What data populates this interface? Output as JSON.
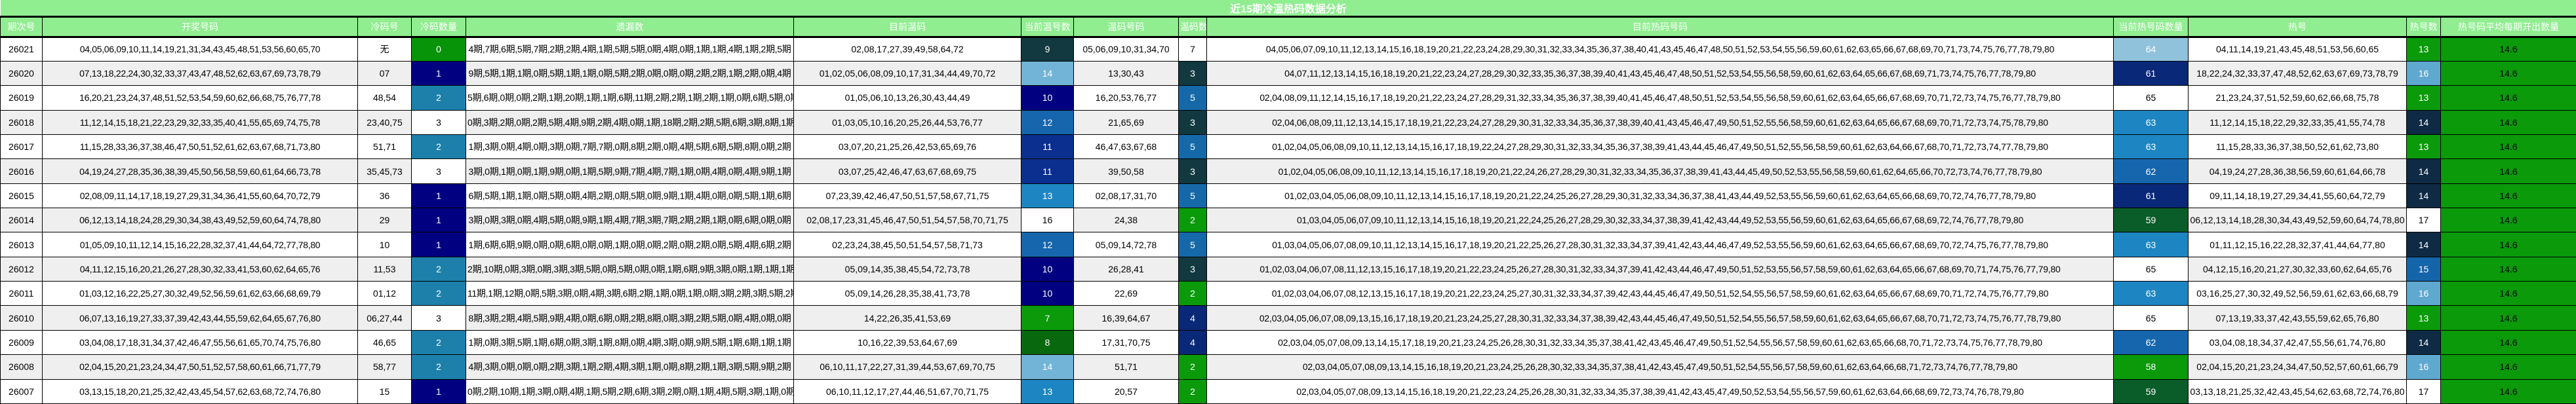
{
  "title": "近15期冷温热码数据分析",
  "columns": [
    {
      "label": "期次号"
    },
    {
      "label": "开奖号码"
    },
    {
      "label": "冷码号"
    },
    {
      "label": "冷码数量"
    },
    {
      "label": "遗漏数"
    },
    {
      "label": "目前温码"
    },
    {
      "label": "当前温号数"
    },
    {
      "label": "温码号码"
    },
    {
      "label": "温码数"
    },
    {
      "label": "目前热码号码"
    },
    {
      "label": "当前热号码数量"
    },
    {
      "label": "热号"
    },
    {
      "label": "热号数"
    },
    {
      "label": "热号码平均每期开出数量"
    }
  ],
  "colors": {
    "header_bg": "#90ee90",
    "header_fg": "#ffffff",
    "row_even_bg": "#ffffff",
    "row_odd_bg": "#efefef",
    "border": "#000000",
    "avg_bg": "#0a9a0a"
  },
  "rows": [
    {
      "period": "26021",
      "draw": "04,05,06,09,10,11,14,19,21,31,34,43,45,48,51,53,56,60,65,70",
      "cold": "无",
      "cold_n": {
        "v": "0",
        "bg": "#089408",
        "fg": "#ffffff"
      },
      "miss": "4期,7期,6期,5期,7期,2期,2期,4期,1期,5期,5期,0期,4期,0期,1期,1期,4期,1期,2期,5期",
      "warm_cur": "02,08,17,27,39,49,58,64,72",
      "warm_cur_n": {
        "v": "9",
        "bg": "#11393f",
        "fg": "#ffffff"
      },
      "warm_nums": "05,06,09,10,31,34,70",
      "warm_n": {
        "v": "7",
        "bg": "#ffffff",
        "fg": "#000000"
      },
      "hot_list": "04,05,06,07,09,10,11,12,13,14,15,16,18,19,20,21,22,23,24,28,29,30,31,32,33,34,35,36,37,38,40,41,43,45,46,47,48,50,51,52,53,54,55,56,59,60,61,62,63,65,66,67,68,69,70,71,73,74,75,76,77,78,79,80",
      "hot_cnt": {
        "v": "64",
        "bg": "#90c2dc",
        "fg": "#ffffff"
      },
      "hot_nums": "04,11,14,19,21,43,45,48,51,53,56,60,65",
      "hot_n": {
        "v": "13",
        "bg": "#0a9a0a",
        "fg": "#ffffff"
      },
      "avg": {
        "v": "14.6",
        "bg": "#0a9a0a",
        "fg": "#000000"
      }
    },
    {
      "period": "26020",
      "draw": "07,13,18,22,24,30,32,33,37,43,47,48,52,62,63,67,69,73,78,79",
      "cold": "07",
      "cold_n": {
        "v": "1",
        "bg": "#000080",
        "fg": "#ffffff"
      },
      "miss": "9期,5期,1期,1期,0期,5期,1期,1期,0期,5期,2期,0期,0期,0期,2期,2期,1期,2期,0期,4期",
      "warm_cur": "01,02,05,06,08,09,10,17,31,34,44,49,70,72",
      "warm_cur_n": {
        "v": "14",
        "bg": "#72b4d8",
        "fg": "#ffffff"
      },
      "warm_nums": "13,30,43",
      "warm_n": {
        "v": "3",
        "bg": "#11393f",
        "fg": "#ffffff"
      },
      "hot_list": "04,07,11,12,13,14,15,16,18,19,20,21,22,23,24,27,28,29,30,32,33,35,36,37,38,39,40,41,43,45,46,47,48,50,51,52,53,54,55,56,58,59,60,61,62,63,64,65,66,67,68,69,71,73,74,75,76,77,78,79,80",
      "hot_cnt": {
        "v": "61",
        "bg": "#0a2878",
        "fg": "#ffffff"
      },
      "hot_nums": "18,22,24,32,33,37,47,48,52,62,63,67,69,73,78,79",
      "hot_n": {
        "v": "16",
        "bg": "#5fa8d0",
        "fg": "#ffffff"
      },
      "avg": {
        "v": "14.6",
        "bg": "#0a9a0a",
        "fg": "#000000"
      }
    },
    {
      "period": "26019",
      "draw": "16,20,21,23,24,37,48,51,52,53,54,59,60,62,66,68,75,76,77,78",
      "cold": "48,54",
      "cold_n": {
        "v": "2",
        "bg": "#1d80aa",
        "fg": "#ffffff"
      },
      "miss": "5期,6期,0期,0期,2期,1期,20期,1期,1期,6期,11期,2期,2期,1期,2期,1期,0期,6期,5期,0期",
      "warm_cur": "01,05,06,10,13,26,30,43,44,49",
      "warm_cur_n": {
        "v": "10",
        "bg": "#000080",
        "fg": "#ffffff"
      },
      "warm_nums": "16,20,53,76,77",
      "warm_n": {
        "v": "5",
        "bg": "#1569a8",
        "fg": "#ffffff"
      },
      "hot_list": "02,04,08,09,11,12,14,15,16,17,18,19,20,21,22,23,24,27,28,29,31,32,33,34,35,36,37,38,39,40,41,45,46,47,48,50,51,52,53,54,55,56,58,59,60,61,62,63,64,65,66,67,68,69,70,71,72,73,74,75,76,77,78,79,80",
      "hot_cnt": {
        "v": "65",
        "bg": "#ffffff",
        "fg": "#000000"
      },
      "hot_nums": "21,23,24,37,51,52,59,60,62,66,68,75,78",
      "hot_n": {
        "v": "13",
        "bg": "#0a9a0a",
        "fg": "#ffffff"
      },
      "avg": {
        "v": "14.6",
        "bg": "#0a9a0a",
        "fg": "#000000"
      }
    },
    {
      "period": "26018",
      "draw": "11,12,14,15,18,21,22,23,29,32,33,35,40,41,55,65,69,74,75,78",
      "cold": "23,40,75",
      "cold_n": {
        "v": "3",
        "bg": "#ffffff",
        "fg": "#000000"
      },
      "miss": "0期,3期,2期,0期,2期,5期,4期,9期,2期,4期,0期,1期,18期,2期,2期,5期,6期,3期,8期,1期",
      "warm_cur": "01,03,05,10,16,20,25,26,44,53,76,77",
      "warm_cur_n": {
        "v": "12",
        "bg": "#1666ae",
        "fg": "#ffffff"
      },
      "warm_nums": "21,65,69",
      "warm_n": {
        "v": "3",
        "bg": "#11393f",
        "fg": "#ffffff"
      },
      "hot_list": "02,04,06,08,09,11,12,13,14,15,17,18,19,21,22,23,24,27,28,29,30,31,32,33,34,35,36,37,38,39,40,41,43,45,46,47,49,50,51,52,55,56,58,59,60,61,62,63,64,65,66,67,68,69,70,71,72,73,74,75,78,79,80",
      "hot_cnt": {
        "v": "63",
        "bg": "#1d86c2",
        "fg": "#ffffff"
      },
      "hot_nums": "11,12,14,15,18,22,29,32,33,35,41,55,74,78",
      "hot_n": {
        "v": "14",
        "bg": "#0e2a45",
        "fg": "#ffffff"
      },
      "avg": {
        "v": "14.6",
        "bg": "#0a9a0a",
        "fg": "#000000"
      }
    },
    {
      "period": "26017",
      "draw": "11,15,28,33,36,37,38,46,47,50,51,52,61,62,63,67,68,71,73,80",
      "cold": "51,71",
      "cold_n": {
        "v": "2",
        "bg": "#1d80aa",
        "fg": "#ffffff"
      },
      "miss": "1期,3期,0期,4期,0期,3期,0期,7期,7期,0期,8期,2期,0期,4期,5期,6期,5期,8期,0期,2期",
      "warm_cur": "03,07,20,21,25,26,42,53,65,69,76",
      "warm_cur_n": {
        "v": "11",
        "bg": "#0b2f8e",
        "fg": "#ffffff"
      },
      "warm_nums": "46,47,63,67,68",
      "warm_n": {
        "v": "5",
        "bg": "#1569a8",
        "fg": "#ffffff"
      },
      "hot_list": "01,02,04,05,06,08,09,10,11,12,13,14,15,16,17,18,19,22,24,27,28,29,30,31,32,33,34,35,36,37,38,39,41,43,44,45,46,47,49,50,51,52,55,56,58,59,60,61,62,63,64,66,67,68,70,71,72,73,74,77,78,79,80",
      "hot_cnt": {
        "v": "63",
        "bg": "#1d86c2",
        "fg": "#ffffff"
      },
      "hot_nums": "11,15,28,33,36,37,38,50,52,61,62,73,80",
      "hot_n": {
        "v": "13",
        "bg": "#0a9a0a",
        "fg": "#ffffff"
      },
      "avg": {
        "v": "14.6",
        "bg": "#0a9a0a",
        "fg": "#000000"
      }
    },
    {
      "period": "26016",
      "draw": "04,19,24,27,28,35,36,38,39,45,50,56,58,59,60,61,64,66,73,78",
      "cold": "35,45,73",
      "cold_n": {
        "v": "3",
        "bg": "#ffffff",
        "fg": "#000000"
      },
      "miss": "3期,0期,1期,0期,1期,9期,0期,1期,5期,9期,7期,4期,7期,1期,0期,4期,0期,4期,9期,1期",
      "warm_cur": "03,07,25,42,46,47,63,67,68,69,75",
      "warm_cur_n": {
        "v": "11",
        "bg": "#0b2f8e",
        "fg": "#ffffff"
      },
      "warm_nums": "39,50,58",
      "warm_n": {
        "v": "3",
        "bg": "#11393f",
        "fg": "#ffffff"
      },
      "hot_list": "01,02,04,05,06,08,09,10,11,12,13,14,15,16,17,18,19,20,21,22,24,26,27,28,29,30,31,32,33,34,35,36,37,38,39,41,43,44,45,49,50,52,53,55,56,58,59,60,61,62,64,65,66,70,72,73,74,76,77,78,79,80",
      "hot_cnt": {
        "v": "62",
        "bg": "#1666ae",
        "fg": "#ffffff"
      },
      "hot_nums": "04,19,24,27,28,36,38,56,59,60,61,64,66,78",
      "hot_n": {
        "v": "14",
        "bg": "#0e2a45",
        "fg": "#ffffff"
      },
      "avg": {
        "v": "14.6",
        "bg": "#0a9a0a",
        "fg": "#000000"
      }
    },
    {
      "period": "26015",
      "draw": "02,08,09,11,14,17,18,19,27,29,31,34,36,41,55,60,64,70,72,79",
      "cold": "36",
      "cold_n": {
        "v": "1",
        "bg": "#000080",
        "fg": "#ffffff"
      },
      "miss": "6期,5期,1期,1期,0期,5期,0期,4期,2期,0期,5期,0期,9期,1期,4期,0期,0期,5期,1期,6期",
      "warm_cur": "07,23,39,42,46,47,50,51,57,58,67,71,75",
      "warm_cur_n": {
        "v": "13",
        "bg": "#1d86c2",
        "fg": "#ffffff"
      },
      "warm_nums": "02,08,17,31,70",
      "warm_n": {
        "v": "5",
        "bg": "#1569a8",
        "fg": "#ffffff"
      },
      "hot_list": "01,02,03,04,05,06,08,09,10,11,12,13,14,15,16,17,18,19,20,21,22,24,25,26,27,28,29,30,31,32,33,34,36,37,38,41,43,44,49,52,53,55,56,59,60,61,62,63,64,65,66,68,69,70,72,74,76,77,78,79,80",
      "hot_cnt": {
        "v": "61",
        "bg": "#0a2878",
        "fg": "#ffffff"
      },
      "hot_nums": "09,11,14,18,19,27,29,34,41,55,60,64,72,79",
      "hot_n": {
        "v": "14",
        "bg": "#0e2a45",
        "fg": "#ffffff"
      },
      "avg": {
        "v": "14.6",
        "bg": "#0a9a0a",
        "fg": "#000000"
      }
    },
    {
      "period": "26014",
      "draw": "06,12,13,14,18,24,28,29,30,34,38,43,49,52,59,60,64,74,78,80",
      "cold": "29",
      "cold_n": {
        "v": "1",
        "bg": "#000080",
        "fg": "#ffffff"
      },
      "miss": "3期,0期,3期,0期,4期,5期,0期,9期,1期,4期,7期,3期,7期,2期,2期,1期,0期,6期,0期,0期",
      "warm_cur": "02,08,17,23,31,45,46,47,50,51,54,57,58,70,71,75",
      "warm_cur_n": {
        "v": "16",
        "bg": "#ffffff",
        "fg": "#000000"
      },
      "warm_nums": "24,38",
      "warm_n": {
        "v": "2",
        "bg": "#0a9a0a",
        "fg": "#ffffff"
      },
      "hot_list": "01,03,04,05,06,07,09,10,11,12,13,14,15,16,18,19,20,21,22,24,25,26,27,28,29,30,32,33,34,37,38,39,41,42,43,44,49,52,53,55,56,59,60,61,62,63,64,65,66,67,68,69,72,74,76,77,78,79,80",
      "hot_cnt": {
        "v": "59",
        "bg": "#0a5c28",
        "fg": "#ffffff"
      },
      "hot_nums": "06,12,13,14,18,28,30,34,43,49,52,59,60,64,74,78,80",
      "hot_n": {
        "v": "17",
        "bg": "#ffffff",
        "fg": "#000000"
      },
      "avg": {
        "v": "14.6",
        "bg": "#0a9a0a",
        "fg": "#000000"
      }
    },
    {
      "period": "26013",
      "draw": "01,05,09,10,11,12,14,15,16,22,28,32,37,41,44,64,72,77,78,80",
      "cold": "10",
      "cold_n": {
        "v": "1",
        "bg": "#000080",
        "fg": "#ffffff"
      },
      "miss": "1期,6期,6期,9期,0期,0期,6期,0期,0期,1期,0期,0期,2期,0期,2期,0期,5期,4期,6期,2期",
      "warm_cur": "02,23,24,38,45,50,51,54,57,58,71,73",
      "warm_cur_n": {
        "v": "12",
        "bg": "#1666ae",
        "fg": "#ffffff"
      },
      "warm_nums": "05,09,14,72,78",
      "warm_n": {
        "v": "5",
        "bg": "#1569a8",
        "fg": "#ffffff"
      },
      "hot_list": "01,03,04,05,06,07,08,09,10,11,12,13,14,15,16,17,18,19,20,21,22,25,26,27,28,30,31,32,33,34,37,39,41,42,43,44,46,47,49,52,53,55,56,59,60,61,62,63,64,65,66,67,68,69,70,72,74,75,76,77,78,79,80",
      "hot_cnt": {
        "v": "63",
        "bg": "#1d86c2",
        "fg": "#ffffff"
      },
      "hot_nums": "01,11,12,15,16,22,28,32,37,41,44,64,77,80",
      "hot_n": {
        "v": "14",
        "bg": "#0e2a45",
        "fg": "#ffffff"
      },
      "avg": {
        "v": "14.6",
        "bg": "#0a9a0a",
        "fg": "#000000"
      }
    },
    {
      "period": "26012",
      "draw": "04,11,12,15,16,20,21,26,27,28,30,32,33,41,53,60,62,64,65,76",
      "cold": "11,53",
      "cold_n": {
        "v": "2",
        "bg": "#1d80aa",
        "fg": "#ffffff"
      },
      "miss": "2期,10期,0期,3期,0期,3期,3期,5期,0期,5期,0期,0期,1期,6期,9期,3期,0期,1期,1期,1期",
      "warm_cur": "05,09,14,35,38,45,54,72,73,78",
      "warm_cur_n": {
        "v": "10",
        "bg": "#000080",
        "fg": "#ffffff"
      },
      "warm_nums": "26,28,41",
      "warm_n": {
        "v": "3",
        "bg": "#11393f",
        "fg": "#ffffff"
      },
      "hot_list": "01,02,03,04,06,07,08,11,12,13,15,16,17,18,19,20,21,22,23,24,25,26,27,28,30,31,32,33,34,37,39,41,42,43,44,46,47,49,50,51,52,53,55,56,57,58,59,60,61,62,63,64,65,66,67,68,69,70,71,74,75,76,77,79,80",
      "hot_cnt": {
        "v": "65",
        "bg": "#ffffff",
        "fg": "#000000"
      },
      "hot_nums": "04,12,15,16,20,21,27,30,32,33,60,62,64,65,76",
      "hot_n": {
        "v": "15",
        "bg": "#1464aa",
        "fg": "#ffffff"
      },
      "avg": {
        "v": "14.6",
        "bg": "#0a9a0a",
        "fg": "#000000"
      }
    },
    {
      "period": "26011",
      "draw": "01,03,12,16,22,25,27,30,32,49,52,56,59,61,62,63,66,68,69,79",
      "cold": "01,12",
      "cold_n": {
        "v": "2",
        "bg": "#1d80aa",
        "fg": "#ffffff"
      },
      "miss": "11期,1期,12期,0期,5期,3期,0期,4期,3期,6期,2期,1期,0期,1期,0期,3期,2期,3期,5期,2期",
      "warm_cur": "05,09,14,26,28,35,38,41,73,78",
      "warm_cur_n": {
        "v": "10",
        "bg": "#000080",
        "fg": "#ffffff"
      },
      "warm_nums": "22,69",
      "warm_n": {
        "v": "2",
        "bg": "#0a9a0a",
        "fg": "#ffffff"
      },
      "hot_list": "01,02,03,04,06,07,08,12,13,15,16,17,18,19,20,21,22,23,24,25,27,30,31,32,33,34,37,39,42,43,44,45,46,47,49,50,51,52,54,55,56,57,58,59,60,61,62,63,64,65,66,67,68,69,70,71,72,74,75,76,77,79,80",
      "hot_cnt": {
        "v": "63",
        "bg": "#1d86c2",
        "fg": "#ffffff"
      },
      "hot_nums": "03,16,25,27,30,32,49,52,56,59,61,62,63,66,68,79",
      "hot_n": {
        "v": "16",
        "bg": "#5fa8d0",
        "fg": "#ffffff"
      },
      "avg": {
        "v": "14.6",
        "bg": "#0a9a0a",
        "fg": "#000000"
      }
    },
    {
      "period": "26010",
      "draw": "06,07,13,16,19,27,33,37,39,42,43,44,55,59,62,64,65,67,76,80",
      "cold": "06,27,44",
      "cold_n": {
        "v": "3",
        "bg": "#ffffff",
        "fg": "#000000"
      },
      "miss": "8期,3期,2期,4期,5期,9期,4期,0期,6期,0期,2期,8期,0期,3期,2期,5期,0期,4期,0期,0期",
      "warm_cur": "14,22,26,35,41,53,69",
      "warm_cur_n": {
        "v": "7",
        "bg": "#0a9a0a",
        "fg": "#ffffff"
      },
      "warm_nums": "16,39,64,67",
      "warm_n": {
        "v": "4",
        "bg": "#0a2878",
        "fg": "#ffffff"
      },
      "hot_list": "02,03,04,05,06,07,08,09,13,15,16,17,18,19,20,21,23,24,25,27,28,30,31,32,33,34,37,38,39,42,43,44,45,46,47,49,50,51,52,54,55,56,57,58,59,60,61,62,63,64,65,66,67,68,70,71,72,73,74,75,76,77,78,79,80",
      "hot_cnt": {
        "v": "65",
        "bg": "#ffffff",
        "fg": "#000000"
      },
      "hot_nums": "07,13,19,33,37,42,43,55,59,62,65,76,80",
      "hot_n": {
        "v": "13",
        "bg": "#0a9a0a",
        "fg": "#ffffff"
      },
      "avg": {
        "v": "14.6",
        "bg": "#0a9a0a",
        "fg": "#000000"
      }
    },
    {
      "period": "26009",
      "draw": "03,04,08,17,18,31,34,37,42,46,47,55,56,61,65,70,74,75,76,80",
      "cold": "46,65",
      "cold_n": {
        "v": "2",
        "bg": "#1d80aa",
        "fg": "#ffffff"
      },
      "miss": "1期,0期,3期,5期,1期,6期,0期,3期,1期,8期,0期,4期,3期,0期,9期,5期,1期,6期,1期,1期",
      "warm_cur": "10,16,22,39,53,64,67,69",
      "warm_cur_n": {
        "v": "8",
        "bg": "#07680e",
        "fg": "#ffffff"
      },
      "warm_nums": "17,31,70,75",
      "warm_n": {
        "v": "4",
        "bg": "#0a2878",
        "fg": "#ffffff"
      },
      "hot_list": "02,03,04,05,07,08,09,13,14,15,17,18,19,20,21,23,24,25,26,28,30,31,32,33,34,35,37,38,41,42,43,45,46,47,49,50,51,52,54,55,56,57,58,59,60,61,62,63,65,66,68,70,71,72,73,74,75,76,77,78,79,80",
      "hot_cnt": {
        "v": "62",
        "bg": "#1666ae",
        "fg": "#ffffff"
      },
      "hot_nums": "03,04,08,18,34,37,42,47,55,56,61,74,76,80",
      "hot_n": {
        "v": "14",
        "bg": "#0e2a45",
        "fg": "#ffffff"
      },
      "avg": {
        "v": "14.6",
        "bg": "#0a9a0a",
        "fg": "#000000"
      }
    },
    {
      "period": "26008",
      "draw": "02,04,15,20,21,23,24,34,47,50,51,52,57,58,60,61,66,71,77,79",
      "cold": "58,77",
      "cold_n": {
        "v": "2",
        "bg": "#1d80aa",
        "fg": "#ffffff"
      },
      "miss": "4期,3期,0期,0期,0期,2期,3期,1期,2期,4期,3期,1期,0期,8期,2期,1期,3期,5期,9期,2期",
      "warm_cur": "06,10,11,17,22,27,31,39,44,53,67,69,70,75",
      "warm_cur_n": {
        "v": "14",
        "bg": "#72b4d8",
        "fg": "#ffffff"
      },
      "warm_nums": "51,71",
      "warm_n": {
        "v": "2",
        "bg": "#0a9a0a",
        "fg": "#ffffff"
      },
      "hot_list": "02,03,04,05,07,08,09,13,14,15,16,18,19,20,21,23,24,25,26,28,30,32,33,34,35,37,38,41,42,43,45,47,49,50,51,52,54,55,56,57,58,59,60,61,62,63,64,66,68,71,72,73,74,76,77,78,79,80",
      "hot_cnt": {
        "v": "58",
        "bg": "#0a9a0a",
        "fg": "#ffffff"
      },
      "hot_nums": "02,04,15,20,21,23,24,34,47,50,52,57,60,61,66,79",
      "hot_n": {
        "v": "16",
        "bg": "#5fa8d0",
        "fg": "#ffffff"
      },
      "avg": {
        "v": "14.6",
        "bg": "#0a9a0a",
        "fg": "#000000"
      }
    },
    {
      "period": "26007",
      "draw": "03,13,15,18,20,21,25,32,42,43,45,54,57,62,63,68,72,74,76,80",
      "cold": "15",
      "cold_n": {
        "v": "1",
        "bg": "#000080",
        "fg": "#ffffff"
      },
      "miss": "0期,2期,10期,1期,3期,0期,4期,1期,5期,2期,6期,3期,2期,0期,1期,4期,5期,3期,1期,0期",
      "warm_cur": "06,10,11,12,17,27,44,46,51,67,70,71,75",
      "warm_cur_n": {
        "v": "13",
        "bg": "#1d86c2",
        "fg": "#ffffff"
      },
      "warm_nums": "20,57",
      "warm_n": {
        "v": "2",
        "bg": "#0a9a0a",
        "fg": "#ffffff"
      },
      "hot_list": "02,03,04,05,07,08,09,13,14,15,16,18,19,20,21,22,23,24,25,26,28,30,31,32,33,34,35,37,38,39,41,42,43,45,47,49,50,52,53,54,55,56,57,59,60,61,62,63,64,66,68,69,72,73,74,76,78,79,80",
      "hot_cnt": {
        "v": "59",
        "bg": "#0a5c28",
        "fg": "#ffffff"
      },
      "hot_nums": "03,13,18,21,25,32,42,43,45,54,62,63,68,72,74,76,80",
      "hot_n": {
        "v": "17",
        "bg": "#ffffff",
        "fg": "#000000"
      },
      "avg": {
        "v": "14.6",
        "bg": "#0a9a0a",
        "fg": "#000000"
      }
    }
  ]
}
